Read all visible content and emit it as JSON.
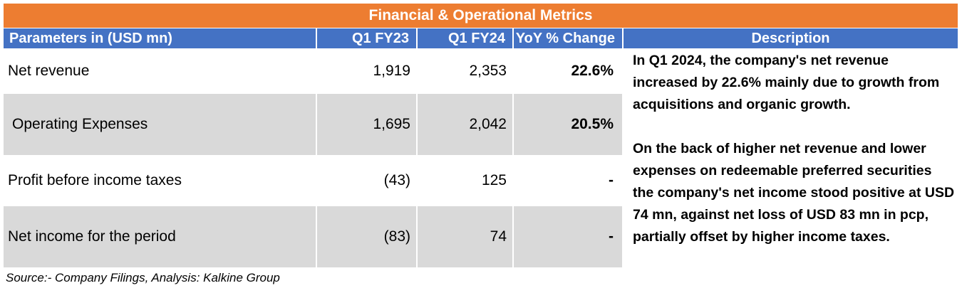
{
  "title": "Financial & Operational Metrics",
  "colors": {
    "title_bg": "#ED7D31",
    "header_bg": "#4472C4",
    "row_shade": "#D9D9D9"
  },
  "headers": {
    "parameters": "Parameters in (USD mn)",
    "q1_fy23": "Q1 FY23",
    "q1_fy24": "Q1 FY24",
    "yoy": "YoY % Change",
    "description": "Description"
  },
  "rows": [
    {
      "label": "Net revenue",
      "q1_fy23": "1,919",
      "q1_fy24": "2,353",
      "yoy": "22.6%"
    },
    {
      "label": "Operating Expenses",
      "q1_fy23": "1,695",
      "q1_fy24": "2,042",
      "yoy": "20.5%"
    },
    {
      "label": "Profit before income taxes",
      "q1_fy23": "(43)",
      "q1_fy24": "125",
      "yoy": "-"
    },
    {
      "label": "Net income for the period",
      "q1_fy23": "(83)",
      "q1_fy24": "74",
      "yoy": "-"
    }
  ],
  "description": [
    "In Q1 2024, the company's net revenue increased by 22.6% mainly due to growth from acquisitions and organic growth.",
    "On the back of higher net revenue and lower expenses on redeemable preferred securities the company's net income stood positive at USD 74 mn, against net loss of USD 83 mn in pcp, partially offset by higher income taxes."
  ],
  "source": "Source:- Company Filings, Analysis: Kalkine Group"
}
